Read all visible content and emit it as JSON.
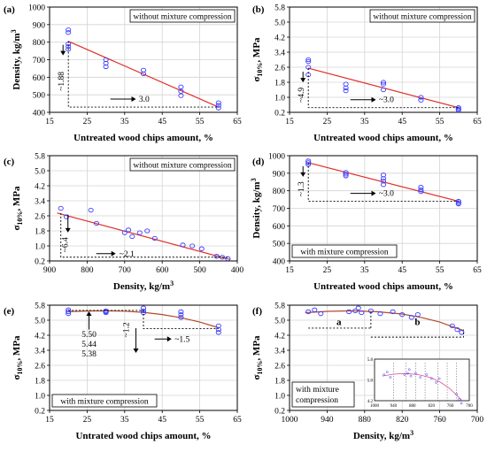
{
  "chart_data": [
    {
      "type": "scatter",
      "panel": "(a)",
      "box_label": "without mixture compression",
      "xlabel": "Untreated wood chips amount, %",
      "ylabel": "Density, kg/m³",
      "xlim": [
        15,
        65
      ],
      "ylim": [
        400,
        1000
      ],
      "xticks": [
        15,
        25,
        35,
        45,
        55,
        65
      ],
      "yticks": [
        400,
        500,
        600,
        700,
        800,
        900,
        1000
      ],
      "points": [
        [
          20,
          870
        ],
        [
          20,
          855
        ],
        [
          20,
          790
        ],
        [
          20,
          775
        ],
        [
          20,
          760
        ],
        [
          30,
          700
        ],
        [
          30,
          680
        ],
        [
          30,
          660
        ],
        [
          40,
          640
        ],
        [
          40,
          620
        ],
        [
          50,
          545
        ],
        [
          50,
          520
        ],
        [
          50,
          495
        ],
        [
          60,
          455
        ],
        [
          60,
          440
        ],
        [
          60,
          425
        ]
      ],
      "fit": [
        [
          20,
          805
        ],
        [
          60,
          430
        ]
      ],
      "ann_y": "~1.88",
      "ann_x": "3.0"
    },
    {
      "type": "scatter",
      "panel": "(b)",
      "box_label": "without mixture compression",
      "xlabel": "Untreated wood chips amount, %",
      "ylabel": "σ10%, MPa",
      "xlim": [
        15,
        65
      ],
      "ylim": [
        0.2,
        5.8
      ],
      "xticks": [
        15,
        25,
        35,
        45,
        55,
        65
      ],
      "yticks": [
        0.2,
        1.0,
        1.8,
        2.6,
        3.4,
        4.2,
        5.0,
        5.8
      ],
      "points": [
        [
          20,
          3.0
        ],
        [
          20,
          2.9
        ],
        [
          20,
          2.6
        ],
        [
          20,
          2.2
        ],
        [
          30,
          1.7
        ],
        [
          30,
          1.5
        ],
        [
          30,
          1.35
        ],
        [
          40,
          1.8
        ],
        [
          40,
          1.7
        ],
        [
          40,
          1.4
        ],
        [
          50,
          1.0
        ],
        [
          50,
          0.85
        ],
        [
          60,
          0.45
        ],
        [
          60,
          0.38
        ],
        [
          60,
          0.32
        ]
      ],
      "fit": [
        [
          20,
          2.55
        ],
        [
          60,
          0.45
        ]
      ],
      "ann_y": "~4.9",
      "ann_x": "~3.0"
    },
    {
      "type": "scatter",
      "panel": "(c)",
      "box_label": "without mixture compression",
      "xlabel": "Density, kg/m³",
      "ylabel": "σ10%, MPa",
      "xlim": [
        900,
        400
      ],
      "ylim": [
        0.2,
        5.8
      ],
      "xticks": [
        900,
        800,
        700,
        600,
        500,
        400
      ],
      "yticks": [
        0.2,
        1.0,
        1.8,
        2.6,
        3.4,
        4.2,
        5.0,
        5.8
      ],
      "points": [
        [
          870,
          3.0
        ],
        [
          855,
          2.55
        ],
        [
          790,
          2.9
        ],
        [
          775,
          2.2
        ],
        [
          700,
          1.7
        ],
        [
          690,
          1.85
        ],
        [
          680,
          1.5
        ],
        [
          660,
          1.7
        ],
        [
          640,
          1.8
        ],
        [
          620,
          1.4
        ],
        [
          545,
          1.05
        ],
        [
          520,
          1.0
        ],
        [
          495,
          0.85
        ],
        [
          455,
          0.45
        ],
        [
          440,
          0.4
        ],
        [
          425,
          0.32
        ]
      ],
      "fit": [
        [
          880,
          2.75
        ],
        [
          420,
          0.28
        ]
      ],
      "ann_y": "~6.4",
      "ann_x": "~2.1"
    },
    {
      "type": "scatter",
      "panel": "(d)",
      "box_label": "with mixture compression",
      "xlabel": "Untreated wood chips amount, %",
      "ylabel": "Density, kg/m³",
      "xlim": [
        15,
        65
      ],
      "ylim": [
        400,
        1000
      ],
      "xticks": [
        15,
        25,
        35,
        45,
        55,
        65
      ],
      "yticks": [
        400,
        500,
        600,
        700,
        800,
        900,
        1000
      ],
      "points": [
        [
          20,
          970
        ],
        [
          20,
          960
        ],
        [
          20,
          950
        ],
        [
          30,
          905
        ],
        [
          30,
          895
        ],
        [
          30,
          885
        ],
        [
          40,
          890
        ],
        [
          40,
          870
        ],
        [
          40,
          855
        ],
        [
          40,
          835
        ],
        [
          50,
          820
        ],
        [
          50,
          805
        ],
        [
          50,
          795
        ],
        [
          60,
          740
        ],
        [
          60,
          732
        ],
        [
          60,
          725
        ]
      ],
      "fit": [
        [
          20,
          960
        ],
        [
          60,
          740
        ]
      ],
      "ann_y": "~1.3",
      "ann_x": "~3.0"
    },
    {
      "type": "scatter",
      "panel": "(e)",
      "box_label": "with mixture compression",
      "xlabel": "Untrated wood chips amount, %",
      "ylabel": "σ10%, MPa",
      "xlim": [
        15,
        65
      ],
      "ylim": [
        0.2,
        5.8
      ],
      "xticks": [
        15,
        25,
        35,
        45,
        55,
        65
      ],
      "yticks": [
        0.2,
        1.0,
        1.8,
        2.6,
        3.4,
        4.2,
        5.0,
        5.8
      ],
      "points": [
        [
          20,
          5.55
        ],
        [
          20,
          5.45
        ],
        [
          20,
          5.35
        ],
        [
          30,
          5.5
        ],
        [
          30,
          5.45
        ],
        [
          30,
          5.4
        ],
        [
          40,
          5.65
        ],
        [
          40,
          5.5
        ],
        [
          40,
          5.4
        ],
        [
          50,
          5.45
        ],
        [
          50,
          5.3
        ],
        [
          50,
          5.15
        ],
        [
          60,
          4.7
        ],
        [
          60,
          4.5
        ],
        [
          60,
          4.35
        ]
      ],
      "fit_curve": [
        [
          20,
          5.45
        ],
        [
          25,
          5.49
        ],
        [
          30,
          5.5
        ],
        [
          35,
          5.48
        ],
        [
          40,
          5.42
        ],
        [
          45,
          5.3
        ],
        [
          50,
          5.13
        ],
        [
          55,
          4.9
        ],
        [
          60,
          4.6
        ]
      ],
      "ann_values": [
        "5.50",
        "5.44",
        "5.38"
      ],
      "ann_y": "~1.2",
      "ann_x": "~1.5"
    },
    {
      "type": "scatter",
      "panel": "(f)",
      "box_label": "with mixture compression",
      "xlabel": "Density, kg/m³",
      "ylabel": "σ10%, MPa",
      "xlim": [
        1000,
        700
      ],
      "ylim": [
        0.2,
        5.8
      ],
      "xticks": [
        1000,
        940,
        880,
        820,
        760,
        700
      ],
      "yticks": [
        0.2,
        1.0,
        1.8,
        2.6,
        3.4,
        4.2,
        5.0,
        5.8
      ],
      "points": [
        [
          970,
          5.45
        ],
        [
          960,
          5.55
        ],
        [
          950,
          5.35
        ],
        [
          905,
          5.45
        ],
        [
          895,
          5.5
        ],
        [
          885,
          5.4
        ],
        [
          890,
          5.65
        ],
        [
          870,
          5.5
        ],
        [
          855,
          5.35
        ],
        [
          835,
          5.45
        ],
        [
          820,
          5.3
        ],
        [
          805,
          5.15
        ],
        [
          795,
          5.3
        ],
        [
          740,
          4.7
        ],
        [
          732,
          4.5
        ],
        [
          725,
          4.35
        ]
      ],
      "fit_curve": [
        [
          975,
          5.4
        ],
        [
          940,
          5.47
        ],
        [
          900,
          5.5
        ],
        [
          860,
          5.45
        ],
        [
          820,
          5.33
        ],
        [
          790,
          5.15
        ],
        [
          760,
          4.9
        ],
        [
          735,
          4.6
        ],
        [
          722,
          4.45
        ]
      ],
      "ann_a": "a",
      "ann_b": "b",
      "inset": {
        "xticks": [
          1000,
          940,
          880,
          820,
          760,
          700
        ],
        "yticks": [
          4.2,
          5.0,
          5.8
        ]
      }
    }
  ]
}
